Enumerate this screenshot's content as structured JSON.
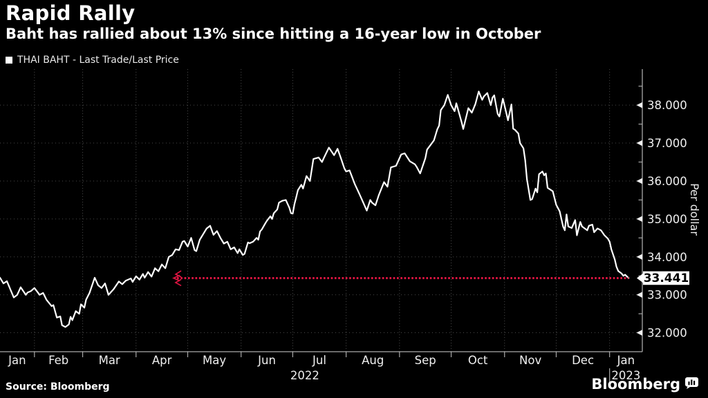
{
  "header": {
    "title": "Rapid Rally",
    "subtitle": "Baht has rallied about 13% since hitting a 16-year low in October"
  },
  "legend": {
    "label": "THAI BAHT - Last Trade/Last Price"
  },
  "footer": {
    "source": "Source: Bloomberg",
    "brand": "Bloomberg"
  },
  "colors": {
    "background": "#000000",
    "line": "#ffffff",
    "track": "#df1542",
    "grid": "#4a4a4a",
    "axis": "#a9a9a9",
    "tick_label": "#efefef",
    "flag_bg": "#ffffff",
    "flag_text": "#000000"
  },
  "chart_data": {
    "type": "line",
    "title": "Rapid Rally",
    "subtitle": "Baht has rallied about 13% since hitting a 16-year low in October",
    "legend": "THAI BAHT - Last Trade/Last Price",
    "source": "Source: Bloomberg",
    "grid": "dotted",
    "legend_position": "top-left",
    "y_axis": {
      "label": "Per dollar",
      "side": "right",
      "range": [
        31.5,
        38.95
      ],
      "ticks": [
        38,
        37,
        36,
        35,
        34,
        33,
        32
      ],
      "minor_ticks": [
        38.5,
        37.5,
        36.5,
        35.5,
        34.5,
        33.5,
        32.5
      ],
      "tick_decimals": 3
    },
    "x_axis": {
      "note": "day numbers are days since 2022-01-01",
      "start_day": 11,
      "end_day": 384,
      "months": [
        {
          "label": "Jan",
          "start": 11
        },
        {
          "label": "Feb",
          "start": 31
        },
        {
          "label": "Mar",
          "start": 59
        },
        {
          "label": "Apr",
          "start": 90
        },
        {
          "label": "May",
          "start": 120
        },
        {
          "label": "Jun",
          "start": 151
        },
        {
          "label": "Jul",
          "start": 181
        },
        {
          "label": "Aug",
          "start": 212
        },
        {
          "label": "Sep",
          "start": 243
        },
        {
          "label": "Oct",
          "start": 273
        },
        {
          "label": "Nov",
          "start": 304
        },
        {
          "label": "Dec",
          "start": 334
        },
        {
          "label": "Jan",
          "start": 365
        }
      ],
      "years": [
        {
          "label": "2022",
          "center_day": 188
        },
        {
          "label": "2023",
          "center_day": 374.5
        }
      ],
      "year_divider_day": 365
    },
    "last_price": {
      "value": 33.441,
      "label": "33.441",
      "track_from_day": 113
    },
    "series": [
      {
        "name": "THAI BAHT - Last Trade/Last Price",
        "color": "#ffffff",
        "points": [
          [
            11,
            33.45
          ],
          [
            13,
            33.3
          ],
          [
            15,
            33.36
          ],
          [
            19,
            32.93
          ],
          [
            21,
            33.0
          ],
          [
            23,
            33.2
          ],
          [
            26,
            33.0
          ],
          [
            27,
            33.06
          ],
          [
            29,
            33.1
          ],
          [
            31,
            33.18
          ],
          [
            34,
            33.0
          ],
          [
            36,
            33.05
          ],
          [
            38,
            32.87
          ],
          [
            41,
            32.7
          ],
          [
            42,
            32.73
          ],
          [
            44,
            32.4
          ],
          [
            46,
            32.43
          ],
          [
            47,
            32.2
          ],
          [
            49,
            32.15
          ],
          [
            51,
            32.22
          ],
          [
            52,
            32.42
          ],
          [
            53,
            32.33
          ],
          [
            55,
            32.57
          ],
          [
            57,
            32.5
          ],
          [
            58,
            32.75
          ],
          [
            60,
            32.66
          ],
          [
            61,
            32.87
          ],
          [
            63,
            33.05
          ],
          [
            66,
            33.45
          ],
          [
            68,
            33.25
          ],
          [
            70,
            33.18
          ],
          [
            72,
            33.3
          ],
          [
            74,
            33.0
          ],
          [
            77,
            33.15
          ],
          [
            80,
            33.35
          ],
          [
            82,
            33.28
          ],
          [
            84,
            33.37
          ],
          [
            87,
            33.43
          ],
          [
            88,
            33.34
          ],
          [
            90,
            33.49
          ],
          [
            92,
            33.4
          ],
          [
            94,
            33.55
          ],
          [
            95,
            33.45
          ],
          [
            97,
            33.6
          ],
          [
            99,
            33.48
          ],
          [
            101,
            33.7
          ],
          [
            103,
            33.62
          ],
          [
            105,
            33.8
          ],
          [
            107,
            33.7
          ],
          [
            109,
            34.0
          ],
          [
            111,
            34.05
          ],
          [
            113,
            34.2
          ],
          [
            115,
            34.18
          ],
          [
            117,
            34.4
          ],
          [
            118,
            34.42
          ],
          [
            120,
            34.27
          ],
          [
            122,
            34.5
          ],
          [
            124,
            34.18
          ],
          [
            125,
            34.15
          ],
          [
            127,
            34.45
          ],
          [
            129,
            34.6
          ],
          [
            131,
            34.75
          ],
          [
            133,
            34.82
          ],
          [
            135,
            34.58
          ],
          [
            137,
            34.68
          ],
          [
            139,
            34.5
          ],
          [
            141,
            34.35
          ],
          [
            143,
            34.4
          ],
          [
            145,
            34.2
          ],
          [
            147,
            34.25
          ],
          [
            149,
            34.1
          ],
          [
            150,
            34.2
          ],
          [
            152,
            34.05
          ],
          [
            153,
            34.08
          ],
          [
            155,
            34.38
          ],
          [
            156,
            34.36
          ],
          [
            158,
            34.4
          ],
          [
            160,
            34.5
          ],
          [
            161,
            34.45
          ],
          [
            162,
            34.67
          ],
          [
            163,
            34.72
          ],
          [
            165,
            34.88
          ],
          [
            166,
            34.95
          ],
          [
            168,
            35.07
          ],
          [
            169,
            35.0
          ],
          [
            170,
            35.15
          ],
          [
            172,
            35.25
          ],
          [
            173,
            35.43
          ],
          [
            175,
            35.48
          ],
          [
            177,
            35.5
          ],
          [
            179,
            35.3
          ],
          [
            180,
            35.15
          ],
          [
            181,
            35.14
          ],
          [
            182,
            35.39
          ],
          [
            183,
            35.57
          ],
          [
            184,
            35.76
          ],
          [
            186,
            35.9
          ],
          [
            187,
            35.8
          ],
          [
            189,
            36.13
          ],
          [
            191,
            36.0
          ],
          [
            193,
            36.58
          ],
          [
            196,
            36.62
          ],
          [
            198,
            36.5
          ],
          [
            199,
            36.6
          ],
          [
            202,
            36.88
          ],
          [
            205,
            36.68
          ],
          [
            207,
            36.85
          ],
          [
            209,
            36.6
          ],
          [
            211,
            36.33
          ],
          [
            212,
            36.25
          ],
          [
            214,
            36.28
          ],
          [
            217,
            35.92
          ],
          [
            219,
            35.73
          ],
          [
            221,
            35.53
          ],
          [
            224,
            35.22
          ],
          [
            226,
            35.5
          ],
          [
            227,
            35.43
          ],
          [
            229,
            35.36
          ],
          [
            231,
            35.63
          ],
          [
            234,
            35.97
          ],
          [
            236,
            35.85
          ],
          [
            238,
            36.36
          ],
          [
            241,
            36.4
          ],
          [
            244,
            36.7
          ],
          [
            246,
            36.73
          ],
          [
            249,
            36.52
          ],
          [
            252,
            36.44
          ],
          [
            253,
            36.37
          ],
          [
            255,
            36.2
          ],
          [
            258,
            36.6
          ],
          [
            259,
            36.83
          ],
          [
            261,
            36.95
          ],
          [
            263,
            37.07
          ],
          [
            265,
            37.37
          ],
          [
            266,
            37.46
          ],
          [
            267,
            37.87
          ],
          [
            269,
            38.0
          ],
          [
            271,
            38.27
          ],
          [
            273,
            38.0
          ],
          [
            275,
            37.84
          ],
          [
            276,
            38.05
          ],
          [
            279,
            37.56
          ],
          [
            280,
            37.37
          ],
          [
            283,
            37.92
          ],
          [
            285,
            37.8
          ],
          [
            287,
            38.02
          ],
          [
            289,
            38.36
          ],
          [
            291,
            38.14
          ],
          [
            292,
            38.23
          ],
          [
            294,
            38.32
          ],
          [
            296,
            38.0
          ],
          [
            297,
            38.2
          ],
          [
            298,
            38.26
          ],
          [
            300,
            37.77
          ],
          [
            301,
            37.7
          ],
          [
            303,
            38.17
          ],
          [
            305,
            37.8
          ],
          [
            306,
            37.6
          ],
          [
            308,
            38.02
          ],
          [
            309,
            37.38
          ],
          [
            310,
            37.35
          ],
          [
            312,
            37.25
          ],
          [
            313,
            37.0
          ],
          [
            315,
            36.86
          ],
          [
            316,
            36.55
          ],
          [
            317,
            36.05
          ],
          [
            319,
            35.5
          ],
          [
            320,
            35.52
          ],
          [
            322,
            35.8
          ],
          [
            323,
            35.7
          ],
          [
            324,
            36.18
          ],
          [
            326,
            36.25
          ],
          [
            327,
            36.15
          ],
          [
            328,
            36.2
          ],
          [
            329,
            35.82
          ],
          [
            332,
            35.73
          ],
          [
            334,
            35.37
          ],
          [
            336,
            35.2
          ],
          [
            338,
            34.8
          ],
          [
            339,
            34.7
          ],
          [
            340,
            35.12
          ],
          [
            341,
            34.8
          ],
          [
            343,
            34.76
          ],
          [
            345,
            34.97
          ],
          [
            346,
            34.57
          ],
          [
            348,
            34.92
          ],
          [
            349,
            34.8
          ],
          [
            352,
            34.7
          ],
          [
            353,
            34.82
          ],
          [
            355,
            34.85
          ],
          [
            356,
            34.65
          ],
          [
            358,
            34.75
          ],
          [
            360,
            34.7
          ],
          [
            362,
            34.57
          ],
          [
            364,
            34.48
          ],
          [
            365,
            34.4
          ],
          [
            366,
            34.2
          ],
          [
            368,
            33.93
          ],
          [
            369,
            33.74
          ],
          [
            370,
            33.63
          ],
          [
            372,
            33.56
          ],
          [
            373,
            33.5
          ],
          [
            374,
            33.53
          ],
          [
            376,
            33.441
          ]
        ]
      }
    ]
  }
}
